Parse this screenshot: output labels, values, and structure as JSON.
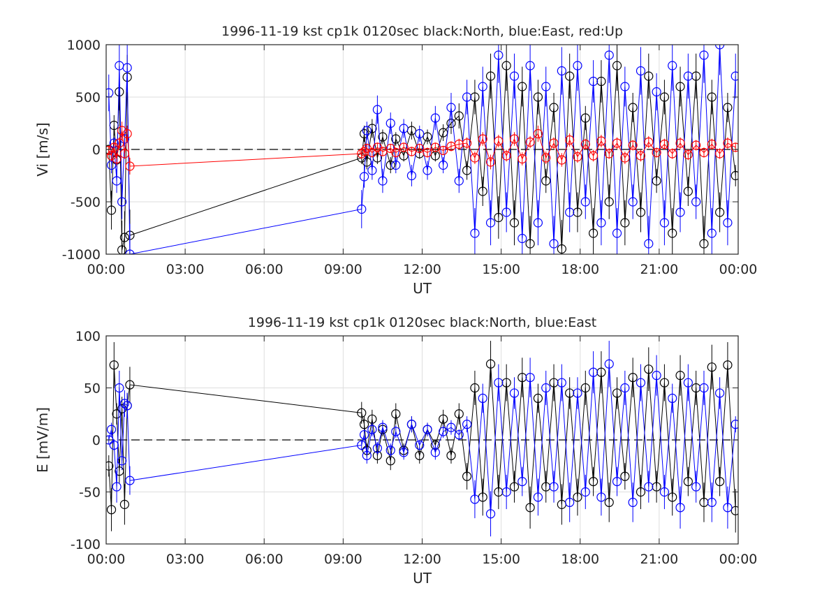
{
  "chart_data": [
    {
      "type": "line",
      "title": "1996-11-19 kst cp1k 0120sec black:North, blue:East, red:Up",
      "xlabel": "UT",
      "ylabel": "Vi [m/s]",
      "xticks": [
        "00:00",
        "03:00",
        "06:00",
        "09:00",
        "12:00",
        "15:00",
        "18:00",
        "21:00",
        "00:00"
      ],
      "xlim_hours": [
        0,
        24
      ],
      "ylim": [
        -1000,
        1000
      ],
      "yticks": [
        "1000",
        "500",
        "0",
        "-500",
        "-1000"
      ],
      "ytick_values": [
        1000,
        500,
        0,
        -500,
        -1000
      ],
      "grid": true,
      "zero_line": "dashed",
      "markers": "open circles with error bars",
      "series": [
        {
          "name": "North",
          "color": "#000000",
          "x": [
            0.1,
            0.2,
            0.3,
            0.4,
            0.5,
            0.6,
            0.7,
            0.8,
            0.9,
            9.7,
            9.8,
            9.9,
            10.1,
            10.3,
            10.5,
            10.8,
            11.0,
            11.3,
            11.6,
            11.9,
            12.2,
            12.5,
            12.8,
            13.1,
            13.4,
            13.7,
            14.0,
            14.3,
            14.6,
            14.9,
            15.2,
            15.5,
            15.8,
            16.1,
            16.4,
            16.7,
            17.0,
            17.3,
            17.6,
            17.9,
            18.2,
            18.5,
            18.8,
            19.1,
            19.4,
            19.7,
            20.0,
            20.3,
            20.6,
            20.9,
            21.2,
            21.5,
            21.8,
            22.1,
            22.4,
            22.7,
            23.0,
            23.3,
            23.6,
            23.9
          ],
          "values": [
            0,
            -580,
            230,
            -100,
            550,
            -960,
            -840,
            690,
            -820,
            -80,
            150,
            -120,
            200,
            -80,
            120,
            -150,
            100,
            -60,
            180,
            -40,
            120,
            -60,
            160,
            250,
            320,
            -200,
            500,
            -400,
            700,
            -650,
            800,
            -700,
            600,
            -900,
            500,
            -300,
            400,
            -950,
            700,
            -600,
            300,
            -800,
            650,
            -500,
            800,
            -700,
            400,
            -600,
            700,
            -300,
            500,
            -800,
            600,
            -400,
            700,
            -900,
            500,
            -600,
            400,
            -250
          ]
        },
        {
          "name": "East",
          "color": "#0000ff",
          "x": [
            0.1,
            0.2,
            0.3,
            0.4,
            0.5,
            0.6,
            0.7,
            0.8,
            0.9,
            9.7,
            9.8,
            9.9,
            10.1,
            10.3,
            10.5,
            10.8,
            11.0,
            11.3,
            11.6,
            11.9,
            12.2,
            12.5,
            12.8,
            13.1,
            13.4,
            13.7,
            14.0,
            14.3,
            14.6,
            14.9,
            15.2,
            15.5,
            15.8,
            16.1,
            16.4,
            16.7,
            17.0,
            17.3,
            17.6,
            17.9,
            18.2,
            18.5,
            18.8,
            19.1,
            19.4,
            19.7,
            20.0,
            20.3,
            20.6,
            20.9,
            21.2,
            21.5,
            21.8,
            22.1,
            22.4,
            22.7,
            23.0,
            23.3,
            23.6,
            23.9
          ],
          "values": [
            540,
            -150,
            60,
            -300,
            800,
            -500,
            100,
            780,
            -1000,
            -570,
            -260,
            180,
            -200,
            380,
            -300,
            250,
            -150,
            200,
            -250,
            150,
            -200,
            300,
            -150,
            400,
            -300,
            500,
            -800,
            600,
            -700,
            900,
            -600,
            700,
            -850,
            800,
            -700,
            600,
            -900,
            750,
            -600,
            800,
            -500,
            650,
            -700,
            900,
            -800,
            600,
            -500,
            750,
            -900,
            550,
            -700,
            800,
            -600,
            700,
            -500,
            900,
            -800,
            1000,
            -700,
            700
          ]
        },
        {
          "name": "Up",
          "color": "#ff0000",
          "x": [
            0.1,
            0.2,
            0.3,
            0.4,
            0.5,
            0.6,
            0.7,
            0.8,
            0.9,
            9.7,
            9.8,
            9.9,
            10.1,
            10.3,
            10.5,
            10.8,
            11.0,
            11.3,
            11.6,
            11.9,
            12.2,
            12.5,
            12.8,
            13.1,
            13.4,
            13.7,
            14.0,
            14.3,
            14.6,
            14.9,
            15.2,
            15.5,
            15.8,
            16.1,
            16.4,
            16.7,
            17.0,
            17.3,
            17.6,
            17.9,
            18.2,
            18.5,
            18.8,
            19.1,
            19.4,
            19.7,
            20.0,
            20.3,
            20.6,
            20.9,
            21.2,
            21.5,
            21.8,
            22.1,
            22.4,
            22.7,
            23.0,
            23.3,
            23.6,
            23.9
          ],
          "values": [
            -10,
            -60,
            20,
            -90,
            60,
            180,
            -40,
            150,
            -160,
            -40,
            -20,
            10,
            -30,
            20,
            -20,
            10,
            -30,
            20,
            -20,
            10,
            -30,
            20,
            -10,
            30,
            50,
            60,
            -80,
            100,
            -120,
            80,
            -60,
            100,
            -90,
            70,
            150,
            -80,
            60,
            -100,
            90,
            -70,
            50,
            -60,
            80,
            -40,
            60,
            -80,
            40,
            -60,
            70,
            -30,
            50,
            -40,
            60,
            -50,
            40,
            -30,
            50,
            -40,
            60,
            20
          ]
        }
      ]
    },
    {
      "type": "line",
      "title": "1996-11-19 kst cp1k 0120sec black:North, blue:East",
      "xlabel": "UT",
      "ylabel": "E [mV/m]",
      "xticks": [
        "00:00",
        "03:00",
        "06:00",
        "09:00",
        "12:00",
        "15:00",
        "18:00",
        "21:00",
        "00:00"
      ],
      "xlim_hours": [
        0,
        24
      ],
      "ylim": [
        -100,
        100
      ],
      "yticks": [
        "100",
        "50",
        "0",
        "-50",
        "-100"
      ],
      "ytick_values": [
        100,
        50,
        0,
        -50,
        -100
      ],
      "grid": true,
      "zero_line": "dashed",
      "markers": "open circles with error bars",
      "series": [
        {
          "name": "North",
          "color": "#000000",
          "x": [
            0.1,
            0.2,
            0.3,
            0.4,
            0.5,
            0.6,
            0.7,
            0.8,
            0.9,
            9.7,
            9.8,
            9.9,
            10.1,
            10.3,
            10.5,
            10.8,
            11.0,
            11.3,
            11.6,
            11.9,
            12.2,
            12.5,
            12.8,
            13.1,
            13.4,
            13.7,
            14.0,
            14.3,
            14.6,
            14.9,
            15.2,
            15.5,
            15.8,
            16.1,
            16.4,
            16.7,
            17.0,
            17.3,
            17.6,
            17.9,
            18.2,
            18.5,
            18.8,
            19.1,
            19.4,
            19.7,
            20.0,
            20.3,
            20.6,
            20.9,
            21.2,
            21.5,
            21.8,
            22.1,
            22.4,
            22.7,
            23.0,
            23.3,
            23.6,
            23.9
          ],
          "values": [
            -25,
            -67,
            72,
            25,
            -30,
            30,
            -62,
            33,
            53,
            26,
            15,
            -10,
            20,
            -15,
            10,
            -20,
            25,
            -10,
            15,
            -15,
            10,
            -5,
            20,
            -15,
            25,
            -35,
            50,
            -55,
            73,
            -50,
            55,
            -45,
            60,
            -65,
            40,
            -45,
            55,
            -62,
            45,
            -55,
            50,
            -40,
            65,
            -60,
            45,
            -35,
            60,
            -50,
            68,
            -45,
            55,
            -55,
            62,
            -40,
            50,
            -60,
            70,
            -40,
            72,
            -68
          ]
        },
        {
          "name": "East",
          "color": "#0000ff",
          "x": [
            0.1,
            0.2,
            0.3,
            0.4,
            0.5,
            0.6,
            0.7,
            0.8,
            0.9,
            9.7,
            9.8,
            9.9,
            10.1,
            10.3,
            10.5,
            10.8,
            11.0,
            11.3,
            11.6,
            11.9,
            12.2,
            12.5,
            12.8,
            13.1,
            13.4,
            13.7,
            14.0,
            14.3,
            14.6,
            14.9,
            15.2,
            15.5,
            15.8,
            16.1,
            16.4,
            16.7,
            17.0,
            17.3,
            17.6,
            17.9,
            18.2,
            18.5,
            18.8,
            19.1,
            19.4,
            19.7,
            20.0,
            20.3,
            20.6,
            20.9,
            21.2,
            21.5,
            21.8,
            22.1,
            22.4,
            22.7,
            23.0,
            23.3,
            23.6,
            23.9
          ],
          "values": [
            0,
            10,
            -5,
            -45,
            50,
            -20,
            35,
            33,
            -39,
            -5,
            5,
            -15,
            10,
            -8,
            12,
            -10,
            8,
            -12,
            15,
            -5,
            10,
            -12,
            8,
            12,
            5,
            15,
            -57,
            40,
            -71,
            55,
            -50,
            45,
            -40,
            60,
            -55,
            50,
            -45,
            55,
            -60,
            45,
            -50,
            65,
            -55,
            73,
            -40,
            50,
            -60,
            55,
            -45,
            62,
            -50,
            40,
            -65,
            55,
            -45,
            50,
            -60,
            45,
            -65,
            15
          ]
        }
      ]
    }
  ]
}
